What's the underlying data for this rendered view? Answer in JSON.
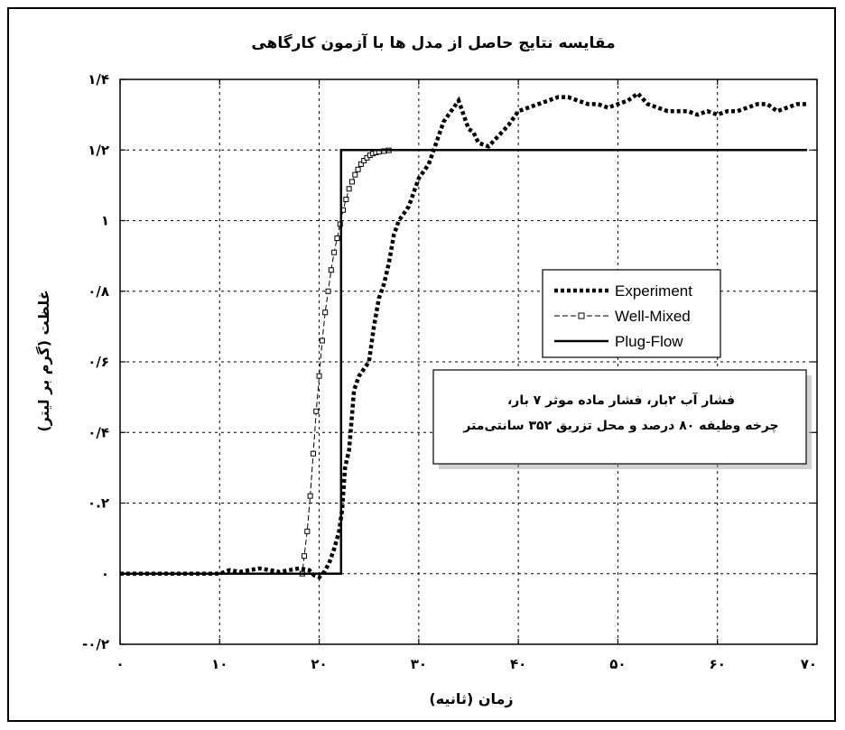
{
  "chart_data": {
    "type": "line",
    "title": "مقایسه نتایج حاصل از مدل ها با آزمون کارگاهی",
    "xlabel": "زمان (ثانیه)",
    "ylabel": "غلظت (گرم بر لیتر)",
    "xlim": [
      0,
      70
    ],
    "ylim": [
      -0.2,
      1.4
    ],
    "xticks": [
      0,
      10,
      20,
      30,
      40,
      50,
      60,
      70
    ],
    "xtick_labels": [
      "۰",
      "۱۰",
      "۲۰",
      "۳۰",
      "۴۰",
      "۵۰",
      "۶۰",
      "۷۰"
    ],
    "yticks": [
      -0.2,
      0,
      0.2,
      0.4,
      0.6,
      0.8,
      1,
      1.2,
      1.4
    ],
    "ytick_labels": [
      "-۰/۲",
      "۰",
      "۰.۲",
      "۰/۴",
      "۰/۶",
      "۰/۸",
      "۱",
      "۱/۲",
      "۱/۴"
    ],
    "grid": true,
    "legend_position": "center-right",
    "annotation_lines": [
      "فشار آب ۲بار، فشار ماده موثر ۷ بار،",
      "چرخه وظیفه ۸۰ درصد و محل تزریق ۳۵۲ سانتی‌متر"
    ],
    "series": [
      {
        "name": "Experiment",
        "style": "dotted",
        "color": "#000000",
        "x": [
          0,
          5,
          10,
          11,
          12,
          13,
          14,
          15,
          16,
          17,
          18,
          19,
          19.5,
          20,
          20.5,
          21,
          21.5,
          22,
          22.3,
          22.6,
          23,
          23.5,
          24,
          24.5,
          25,
          25.5,
          26,
          26.5,
          27,
          27.5,
          28,
          28.5,
          29,
          29.5,
          30,
          30.5,
          31,
          31.5,
          32,
          32.5,
          33,
          33.5,
          34,
          34.5,
          35,
          35.5,
          36,
          37,
          38,
          39,
          40,
          41,
          42,
          43,
          44,
          45,
          46,
          47,
          48,
          49,
          50,
          51,
          52,
          53,
          54,
          55,
          56,
          57,
          58,
          59,
          60,
          61,
          62,
          63,
          64,
          65,
          66,
          67,
          68,
          69
        ],
        "y": [
          0,
          0,
          0,
          0.01,
          0.005,
          0.01,
          0.015,
          0.01,
          0.005,
          0.01,
          0.015,
          0.01,
          -0.005,
          -0.01,
          0.005,
          0.03,
          0.07,
          0.12,
          0.18,
          0.3,
          0.35,
          0.52,
          0.56,
          0.58,
          0.6,
          0.7,
          0.78,
          0.82,
          0.88,
          0.96,
          1.0,
          1.02,
          1.04,
          1.08,
          1.12,
          1.14,
          1.16,
          1.2,
          1.24,
          1.28,
          1.3,
          1.32,
          1.34,
          1.3,
          1.26,
          1.25,
          1.22,
          1.21,
          1.24,
          1.27,
          1.31,
          1.32,
          1.33,
          1.34,
          1.35,
          1.35,
          1.34,
          1.33,
          1.33,
          1.32,
          1.33,
          1.34,
          1.36,
          1.33,
          1.32,
          1.31,
          1.31,
          1.31,
          1.3,
          1.31,
          1.3,
          1.31,
          1.31,
          1.32,
          1.33,
          1.33,
          1.31,
          1.32,
          1.33,
          1.33
        ]
      },
      {
        "name": "Well-Mixed",
        "style": "dashed-square",
        "color": "#000000",
        "x": [
          0,
          18.3,
          18.5,
          18.8,
          19.1,
          19.4,
          19.7,
          20.0,
          20.3,
          20.6,
          20.9,
          21.2,
          21.5,
          21.8,
          22.1,
          22.4,
          22.7,
          23.0,
          23.3,
          23.6,
          23.9,
          24.2,
          24.5,
          24.8,
          25.1,
          25.4,
          25.7,
          26.0,
          26.5,
          27.0,
          28.0,
          29.0,
          30.0,
          35.0,
          50.0,
          69.0
        ],
        "y": [
          0,
          0,
          0.05,
          0.12,
          0.22,
          0.34,
          0.46,
          0.56,
          0.66,
          0.74,
          0.8,
          0.86,
          0.91,
          0.95,
          0.99,
          1.03,
          1.06,
          1.09,
          1.11,
          1.13,
          1.145,
          1.16,
          1.17,
          1.178,
          1.185,
          1.19,
          1.193,
          1.195,
          1.197,
          1.199,
          1.2,
          1.2,
          1.2,
          1.2,
          1.2,
          1.2
        ]
      },
      {
        "name": "Plug-Flow",
        "style": "solid",
        "color": "#000000",
        "x": [
          0,
          22.2,
          22.2,
          69
        ],
        "y": [
          0,
          0,
          1.2,
          1.2
        ]
      }
    ]
  }
}
